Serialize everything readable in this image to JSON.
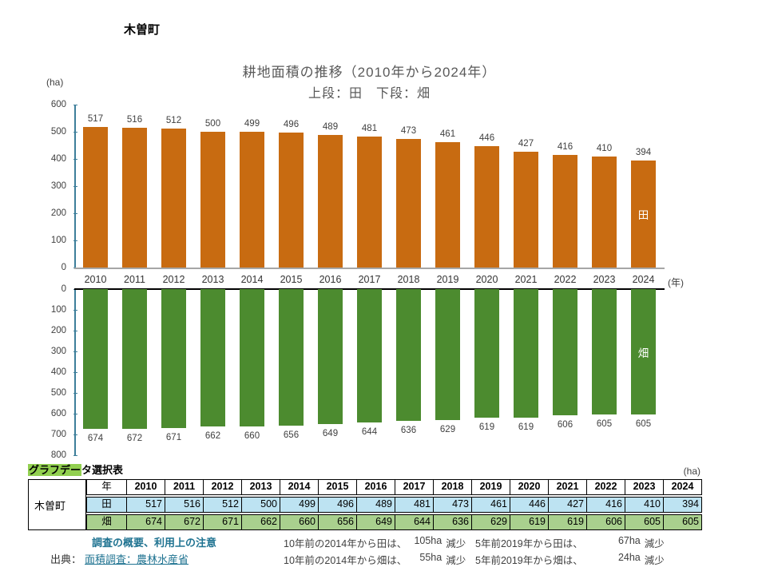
{
  "header": {
    "municipality": "木曽町"
  },
  "chart_data": {
    "type": "bar",
    "title": "耕地面積の推移（2010年から2024年）",
    "subtitle": "上段：田　下段：畑",
    "unit_label": "(ha)",
    "x_unit_label": "(年)",
    "grid": false,
    "legend_position": "in-bar",
    "categories": [
      "2010",
      "2011",
      "2012",
      "2013",
      "2014",
      "2015",
      "2016",
      "2017",
      "2018",
      "2019",
      "2020",
      "2021",
      "2022",
      "2023",
      "2024"
    ],
    "series": [
      {
        "name": "田",
        "color": "#C86B11",
        "orientation": "up",
        "ylim": [
          0,
          600
        ],
        "axis_ticks": [
          600,
          500,
          400,
          300,
          200,
          100,
          0
        ],
        "values": [
          517,
          516,
          512,
          500,
          499,
          496,
          489,
          481,
          473,
          461,
          446,
          427,
          416,
          410,
          394
        ]
      },
      {
        "name": "畑",
        "color": "#4C8B2F",
        "orientation": "down",
        "ylim": [
          0,
          800
        ],
        "axis_ticks": [
          0,
          100,
          200,
          300,
          400,
          500,
          600,
          700,
          800
        ],
        "values": [
          674,
          672,
          671,
          662,
          660,
          656,
          649,
          644,
          636,
          629,
          619,
          619,
          606,
          605,
          605
        ]
      }
    ]
  },
  "table": {
    "caption_highlight": "グラフデー",
    "caption_rest": "タ選択表",
    "unit": "(ha)",
    "row_header": "木曽町",
    "corner_label": "年",
    "years": [
      "2010",
      "2011",
      "2012",
      "2013",
      "2014",
      "2015",
      "2016",
      "2017",
      "2018",
      "2019",
      "2020",
      "2021",
      "2022",
      "2023",
      "2024"
    ],
    "rows": [
      {
        "label": "田",
        "bg": "#BDE3F2",
        "values": [
          517,
          516,
          512,
          500,
          499,
          496,
          489,
          481,
          473,
          461,
          446,
          427,
          416,
          410,
          394
        ]
      },
      {
        "label": "畑",
        "bg": "#A9D08E",
        "values": [
          674,
          672,
          671,
          662,
          660,
          656,
          649,
          644,
          636,
          629,
          619,
          619,
          606,
          605,
          605
        ]
      }
    ]
  },
  "footer": {
    "survey_link": "調査の概要、利用上の注意",
    "source_label": "出典：",
    "source_link": "面積調査：農林水産省",
    "notes": [
      {
        "text": "10年前の2014年から田は、",
        "amount": "105ha",
        "suffix": "減少"
      },
      {
        "text": "10年前の2014年から畑は、",
        "amount": "55ha",
        "suffix": "減少"
      },
      {
        "text": "5年前2019年から田は、",
        "amount": "67ha",
        "suffix": "減少"
      },
      {
        "text": "5年前2019年から畑は、",
        "amount": "24ha",
        "suffix": "減少"
      }
    ]
  },
  "colors": {
    "paddy_bar": "#C86B11",
    "field_bar": "#4C8B2F",
    "axis_line": "#3D7E9A",
    "baseline_gray": "#A6A6A6",
    "table_paddy_bg": "#BDE3F2",
    "table_field_bg": "#A9D08E",
    "caption_highlight": "#92D050",
    "link_teal": "#1F7391",
    "title_gray": "#595959"
  }
}
